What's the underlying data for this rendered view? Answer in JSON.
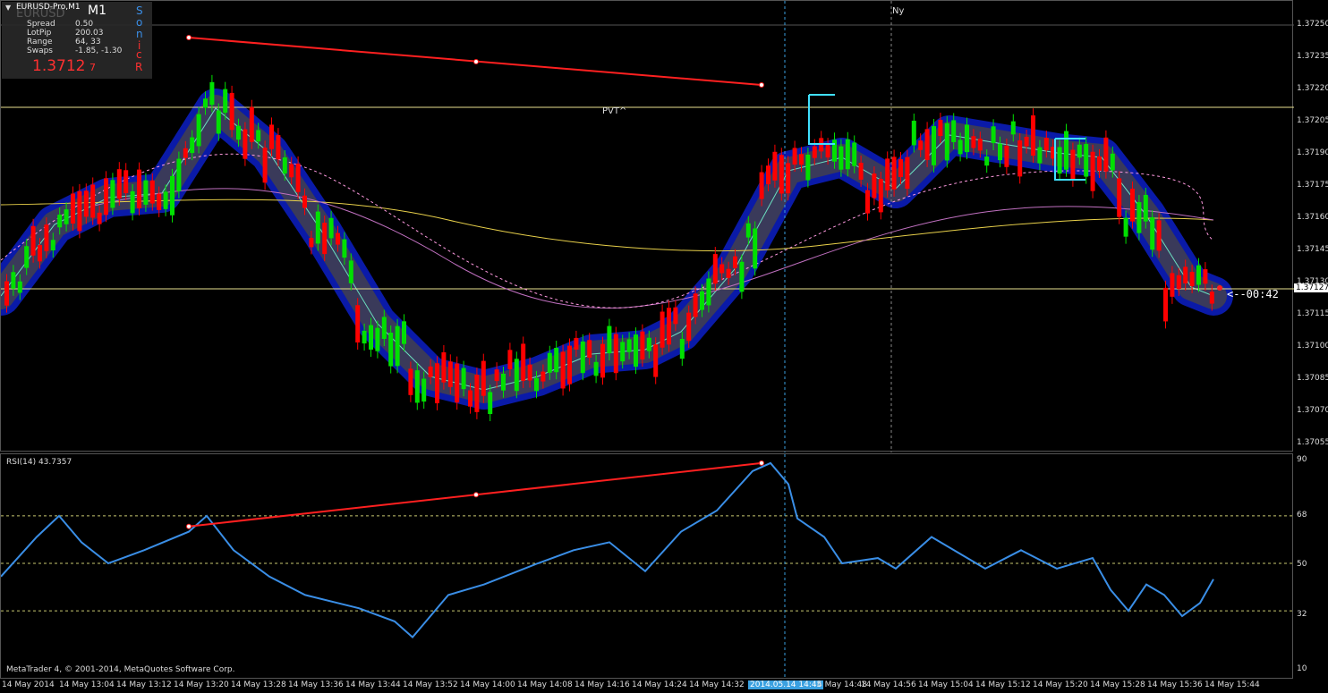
{
  "window": {
    "title": "EURUSD-Pro,M1",
    "timeframe": "M1",
    "symbol_overlay": "EURUSD"
  },
  "info": {
    "rows": [
      {
        "label": "Spread",
        "value": "0.50"
      },
      {
        "label": "LotPip",
        "value": "200.03"
      },
      {
        "label": "Range",
        "value": "64, 33"
      },
      {
        "label": "Swaps",
        "value": "-1.85, -1.30"
      }
    ],
    "price_big": "1.3712",
    "price_small": "7",
    "vertical_letters": [
      "S",
      "o",
      "n",
      "i",
      "c",
      "R"
    ]
  },
  "labels": {
    "pvt": "PVT^",
    "ny": "Ny",
    "countdown": "<--00:42",
    "current_price": "1.37127"
  },
  "rsi": {
    "label": "RSI(14) 43.7357",
    "levels": [
      "90",
      "68",
      "50",
      "32",
      "10"
    ]
  },
  "price_scale": [
    "1.37250",
    "1.37235",
    "1.37220",
    "1.37205",
    "1.37190",
    "1.37175",
    "1.37160",
    "1.37145",
    "1.37130",
    "1.37115",
    "1.37100",
    "1.37085",
    "1.37070",
    "1.37055"
  ],
  "time_axis": [
    "14 May 2014",
    "14 May 13:04",
    "14 May 13:12",
    "14 May 13:20",
    "14 May 13:28",
    "14 May 13:36",
    "14 May 13:44",
    "14 May 13:52",
    "14 May 14:00",
    "14 May 14:08",
    "14 May 14:16",
    "14 May 14:24",
    "14 May 14:32",
    "2014.05.14 14:45",
    "4 May 14:48",
    "14 May 14:56",
    "14 May 15:04",
    "14 May 15:12",
    "14 May 15:20",
    "14 May 15:28",
    "14 May 15:36",
    "14 May 15:44"
  ],
  "copyright": "MetaTrader 4, © 2001-2014, MetaQuotes Software Corp.",
  "colors": {
    "bull": "#00e000",
    "bear": "#ff0000",
    "rsi": "#3a8ee6",
    "band": "#0a1aa8",
    "trend": "#ff2020"
  }
}
